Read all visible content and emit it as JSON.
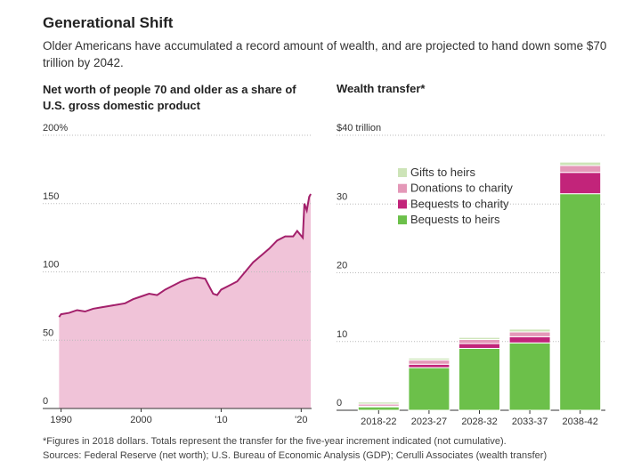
{
  "title": "Generational Shift",
  "subtitle": "Older Americans have accumulated a record amount of wealth, and are projected to hand down some $70 trillion by 2042.",
  "footnote": "*Figures in 2018 dollars. Totals represent the transfer for the five-year increment indicated (not cumulative).",
  "source": "Sources: Federal Reserve (net worth); U.S. Bureau of Economic Analysis (GDP); Cerulli Associates (wealth transfer)",
  "chart_data": [
    {
      "type": "area",
      "title": "Net worth of people 70 and older as a share of U.S. gross domestic product",
      "x": [
        1989.75,
        1990,
        1991,
        1992,
        1993,
        1994,
        1995,
        1996,
        1997,
        1998,
        1999,
        2000,
        2001,
        2002,
        2003,
        2004,
        2005,
        2006,
        2007,
        2008,
        2009,
        2009.5,
        2010,
        2011,
        2012,
        2013,
        2014,
        2015,
        2016,
        2017,
        2018,
        2019,
        2019.5,
        2020.2,
        2020.4,
        2020.7,
        2021,
        2021.2
      ],
      "values": [
        67,
        69,
        70,
        72,
        71,
        73,
        74,
        75,
        76,
        77,
        80,
        82,
        84,
        83,
        87,
        90,
        93,
        95,
        96,
        95,
        84,
        83,
        87,
        90,
        93,
        100,
        107,
        112,
        117,
        123,
        126,
        126,
        130,
        125,
        150,
        145,
        155,
        157
      ],
      "color": "#a3206b",
      "fill_color": "#f0c3d8",
      "xlim": [
        1989.6,
        2021.3
      ],
      "xticks": [
        1990,
        2000,
        {
          "value": 2010,
          "label": "'10"
        },
        {
          "value": 2020,
          "label": "'20"
        }
      ],
      "ylim": [
        0,
        200
      ],
      "yticks": [
        0,
        50,
        100,
        150,
        {
          "value": 200,
          "label": "200%"
        }
      ],
      "grid": true
    },
    {
      "type": "stacked_bar",
      "title": "Wealth transfer*",
      "categories": [
        "2018-22",
        "2023-27",
        "2028-32",
        "2033-37",
        "2038-42"
      ],
      "series": [
        {
          "name": "Bequests to heirs",
          "color": "#6cc04a",
          "values": [
            0.5,
            6.2,
            9.0,
            9.8,
            31.5
          ]
        },
        {
          "name": "Bequests to charity",
          "color": "#c2247a",
          "values": [
            0.1,
            0.5,
            0.7,
            0.9,
            3.1
          ]
        },
        {
          "name": "Donations to charity",
          "color": "#e498b8",
          "values": [
            0.3,
            0.6,
            0.6,
            0.7,
            1.0
          ]
        },
        {
          "name": "Gifts to heirs",
          "color": "#cde4b8",
          "values": [
            0.3,
            0.3,
            0.3,
            0.4,
            0.5
          ]
        }
      ],
      "ylim": [
        0,
        40
      ],
      "yticks": [
        0,
        10,
        20,
        30,
        {
          "value": 40,
          "label": "$40 trillion"
        }
      ],
      "grid": true
    }
  ]
}
